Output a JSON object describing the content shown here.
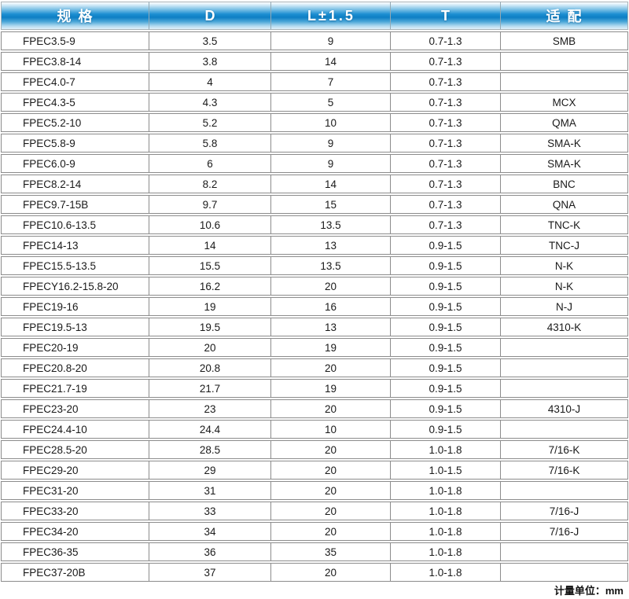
{
  "table": {
    "headers": [
      "规格",
      "D",
      "L±1.5",
      "T",
      "适配"
    ],
    "rows": [
      [
        "FPEC3.5-9",
        "3.5",
        "9",
        "0.7-1.3",
        "SMB"
      ],
      [
        "FPEC3.8-14",
        "3.8",
        "14",
        "0.7-1.3",
        ""
      ],
      [
        "FPEC4.0-7",
        "4",
        "7",
        "0.7-1.3",
        ""
      ],
      [
        "FPEC4.3-5",
        "4.3",
        "5",
        "0.7-1.3",
        "MCX"
      ],
      [
        "FPEC5.2-10",
        "5.2",
        "10",
        "0.7-1.3",
        "QMA"
      ],
      [
        "FPEC5.8-9",
        "5.8",
        "9",
        "0.7-1.3",
        "SMA-K"
      ],
      [
        "FPEC6.0-9",
        "6",
        "9",
        "0.7-1.3",
        "SMA-K"
      ],
      [
        "FPEC8.2-14",
        "8.2",
        "14",
        "0.7-1.3",
        "BNC"
      ],
      [
        "FPEC9.7-15B",
        "9.7",
        "15",
        "0.7-1.3",
        "QNA"
      ],
      [
        "FPEC10.6-13.5",
        "10.6",
        "13.5",
        "0.7-1.3",
        "TNC-K"
      ],
      [
        "FPEC14-13",
        "14",
        "13",
        "0.9-1.5",
        "TNC-J"
      ],
      [
        "FPEC15.5-13.5",
        "15.5",
        "13.5",
        "0.9-1.5",
        "N-K"
      ],
      [
        "FPECY16.2-15.8-20",
        "16.2",
        "20",
        "0.9-1.5",
        "N-K"
      ],
      [
        "FPEC19-16",
        "19",
        "16",
        "0.9-1.5",
        "N-J"
      ],
      [
        "FPEC19.5-13",
        "19.5",
        "13",
        "0.9-1.5",
        "4310-K"
      ],
      [
        "FPEC20-19",
        "20",
        "19",
        "0.9-1.5",
        ""
      ],
      [
        "FPEC20.8-20",
        "20.8",
        "20",
        "0.9-1.5",
        ""
      ],
      [
        "FPEC21.7-19",
        "21.7",
        "19",
        "0.9-1.5",
        ""
      ],
      [
        "FPEC23-20",
        "23",
        "20",
        "0.9-1.5",
        "4310-J"
      ],
      [
        "FPEC24.4-10",
        "24.4",
        "10",
        "0.9-1.5",
        ""
      ],
      [
        "FPEC28.5-20",
        "28.5",
        "20",
        "1.0-1.8",
        "7/16-K"
      ],
      [
        "FPEC29-20",
        "29",
        "20",
        "1.0-1.5",
        "7/16-K"
      ],
      [
        "FPEC31-20",
        "31",
        "20",
        "1.0-1.8",
        ""
      ],
      [
        "FPEC33-20",
        "33",
        "20",
        "1.0-1.8",
        "7/16-J"
      ],
      [
        "FPEC34-20",
        "34",
        "20",
        "1.0-1.8",
        "7/16-J"
      ],
      [
        "FPEC36-35",
        "36",
        "35",
        "1.0-1.8",
        ""
      ],
      [
        "FPEC37-20B",
        "37",
        "20",
        "1.0-1.8",
        ""
      ]
    ]
  },
  "footer": {
    "unit_note": "计量单位：mm"
  },
  "colors": {
    "header_blue": "#0d7fc4",
    "header_blue_light": "#7fc2e6",
    "border_gray": "#8c8c8c",
    "header_text": "#ffffff",
    "body_text": "#1a1a1a"
  }
}
